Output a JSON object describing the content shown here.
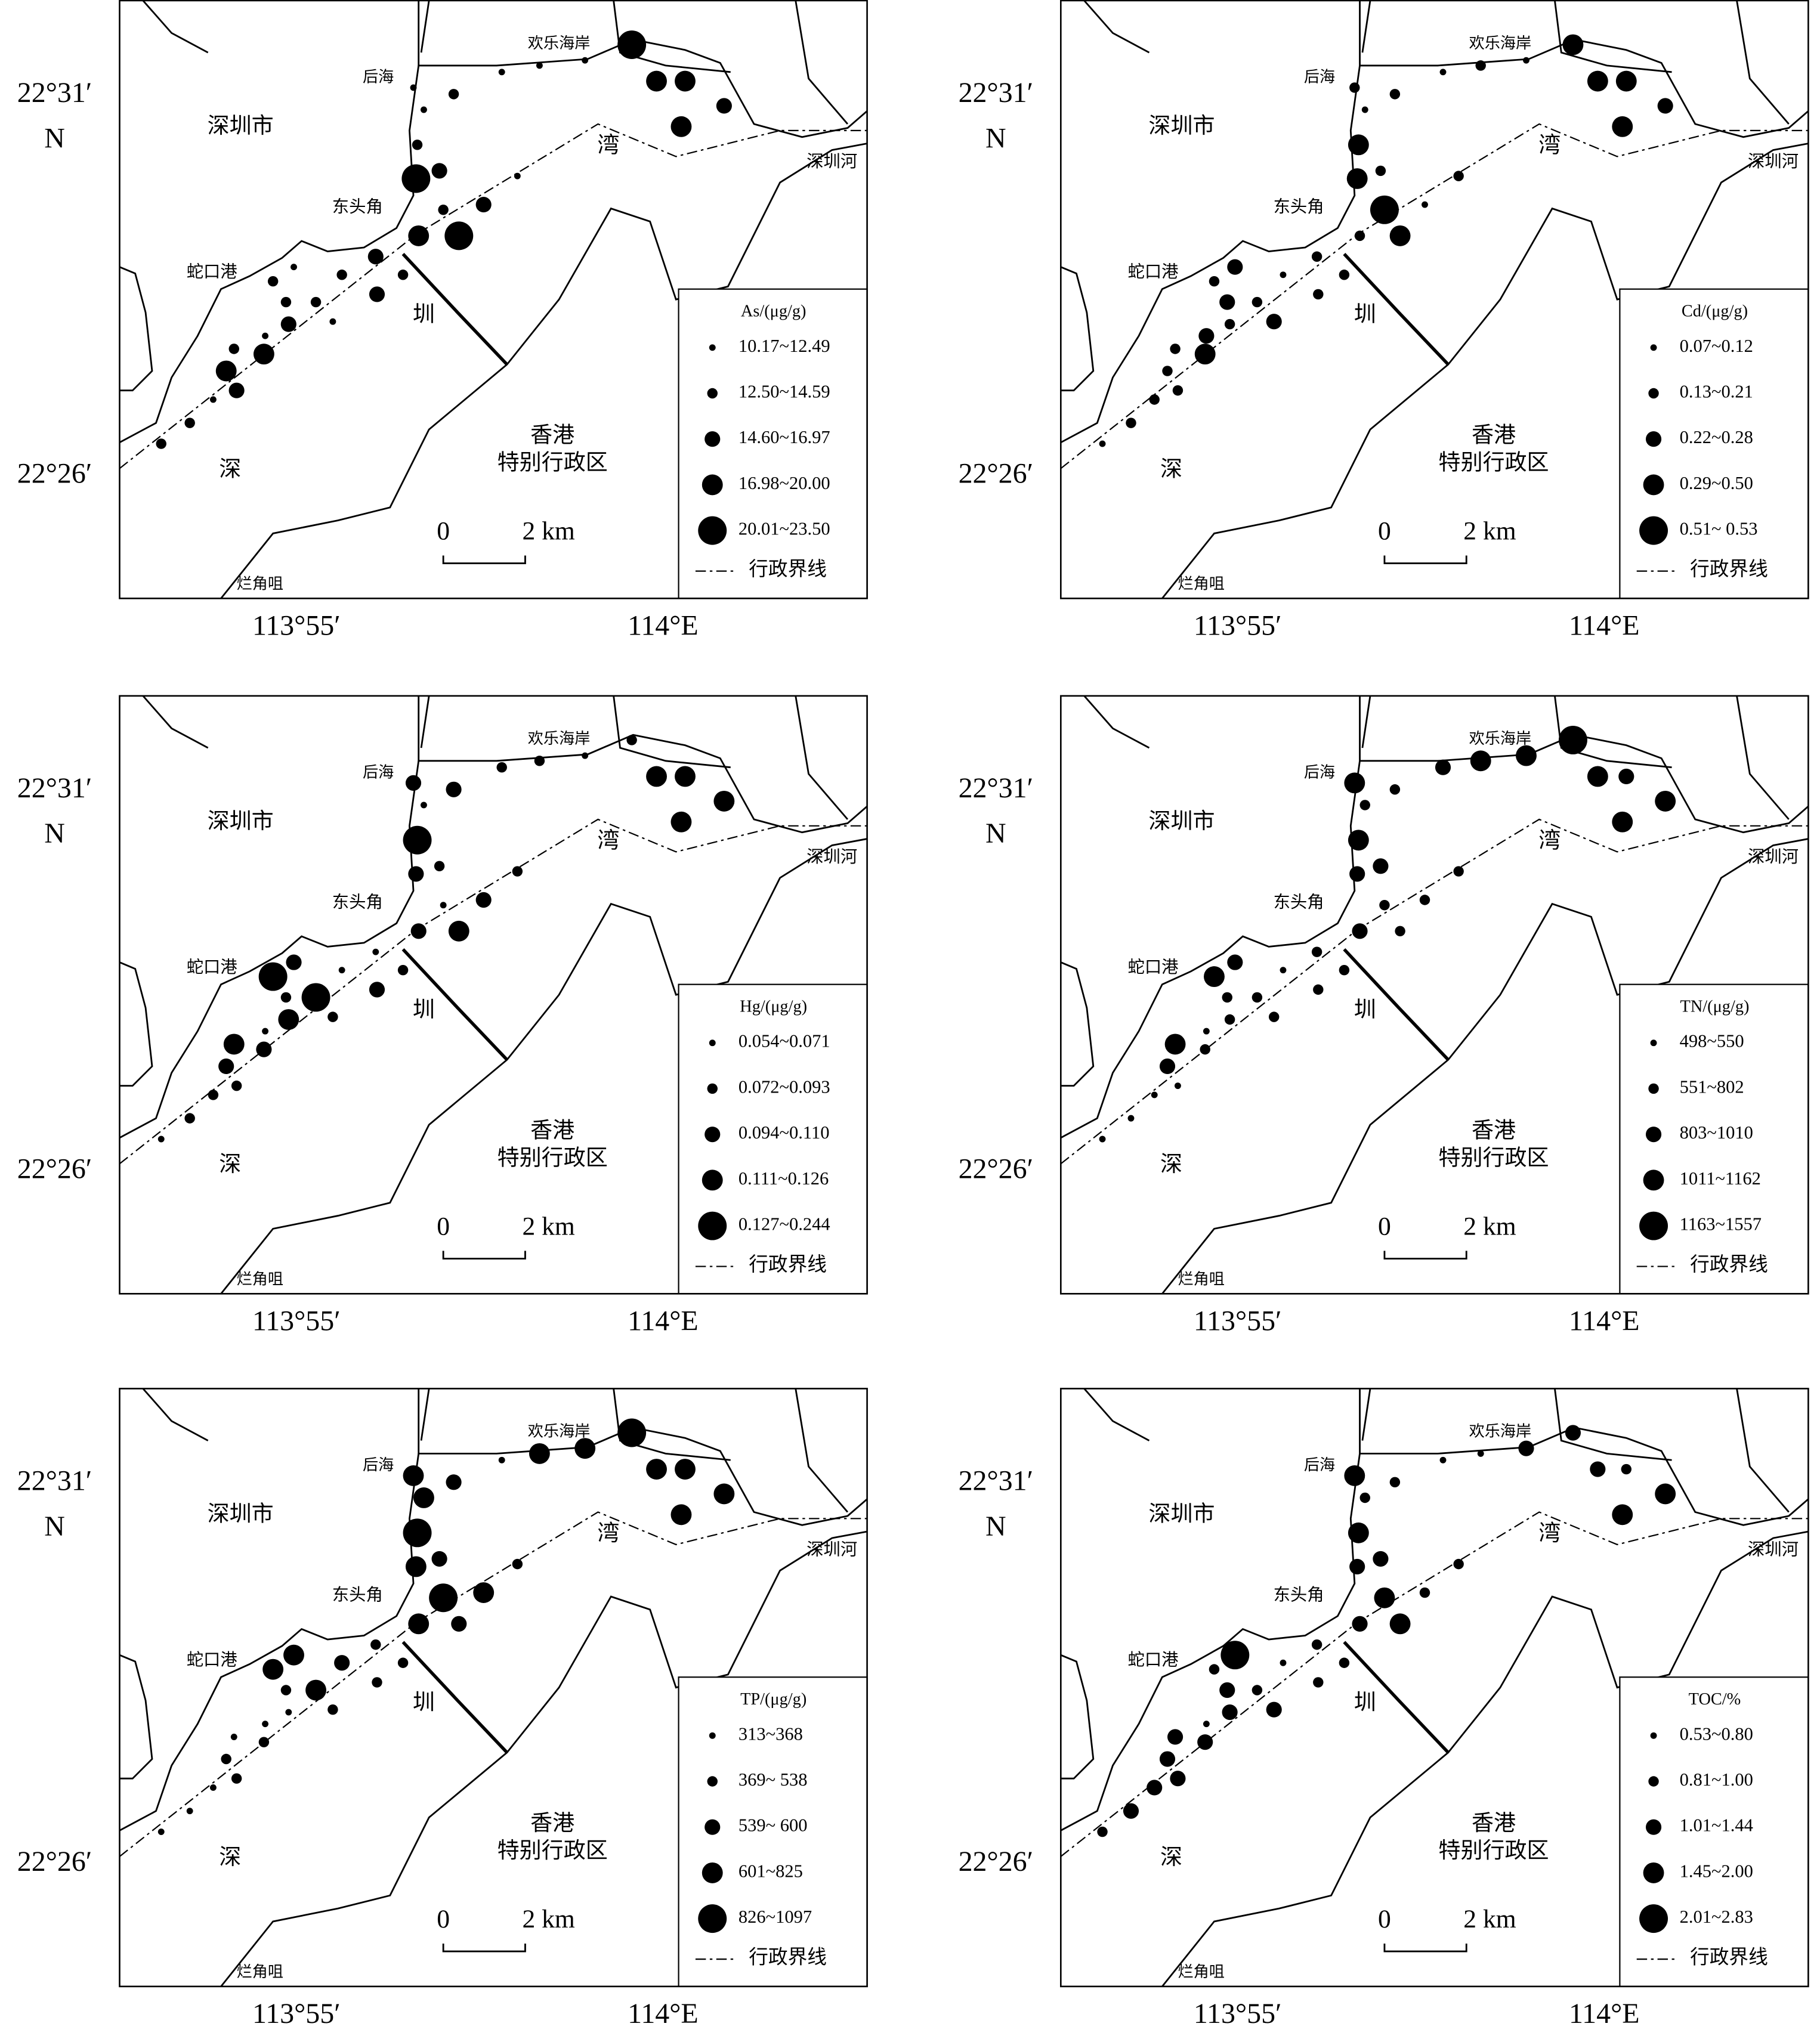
{
  "axes": {
    "lat_top": "22°31′",
    "lat_dir": "N",
    "lat_bottom": "22°26′",
    "lon_left": "113°55′",
    "lon_right": "114°E"
  },
  "map_labels": {
    "city": "深圳市",
    "houhai": "后海",
    "beach": "欢乐海岸",
    "wan": "湾",
    "river": "深圳河",
    "dongtoujiao": "东头角",
    "shekou": "蛇口港",
    "zhen": "圳",
    "shen": "深",
    "hk1": "香港",
    "hk2": "特别行政区",
    "lanjiaozui": "烂角咀"
  },
  "scale": {
    "zero": "0",
    "length": "2 km"
  },
  "boundary_label": "行政界线",
  "panels": [
    {
      "legend_title": "As/(μg/g)",
      "classes": [
        "10.17~12.49",
        "12.50~14.59",
        "14.60~16.97",
        "16.98~20.00",
        "20.01~23.50"
      ]
    },
    {
      "legend_title": "Cd/(μg/g)",
      "classes": [
        "0.07~0.12",
        "0.13~0.21",
        "0.22~0.28",
        "0.29~0.50",
        "0.51~ 0.53"
      ]
    },
    {
      "legend_title": "Hg/(μg/g)",
      "classes": [
        "0.054~0.071",
        "0.072~0.093",
        "0.094~0.110",
        "0.111~0.126",
        "0.127~0.244"
      ]
    },
    {
      "legend_title": "TN/(μg/g)",
      "classes": [
        "498~550",
        "551~802",
        "803~1010",
        "1011~1162",
        "1163~1557"
      ]
    },
    {
      "legend_title": "TP/(μg/g)",
      "classes": [
        "313~368",
        "369~ 538",
        "539~ 600",
        "601~825",
        "826~1097"
      ]
    },
    {
      "legend_title": "TOC/%",
      "classes": [
        "0.53~0.80",
        "0.81~1.00",
        "1.01~1.44",
        "1.45~2.00",
        "2.01~2.83"
      ]
    }
  ]
}
